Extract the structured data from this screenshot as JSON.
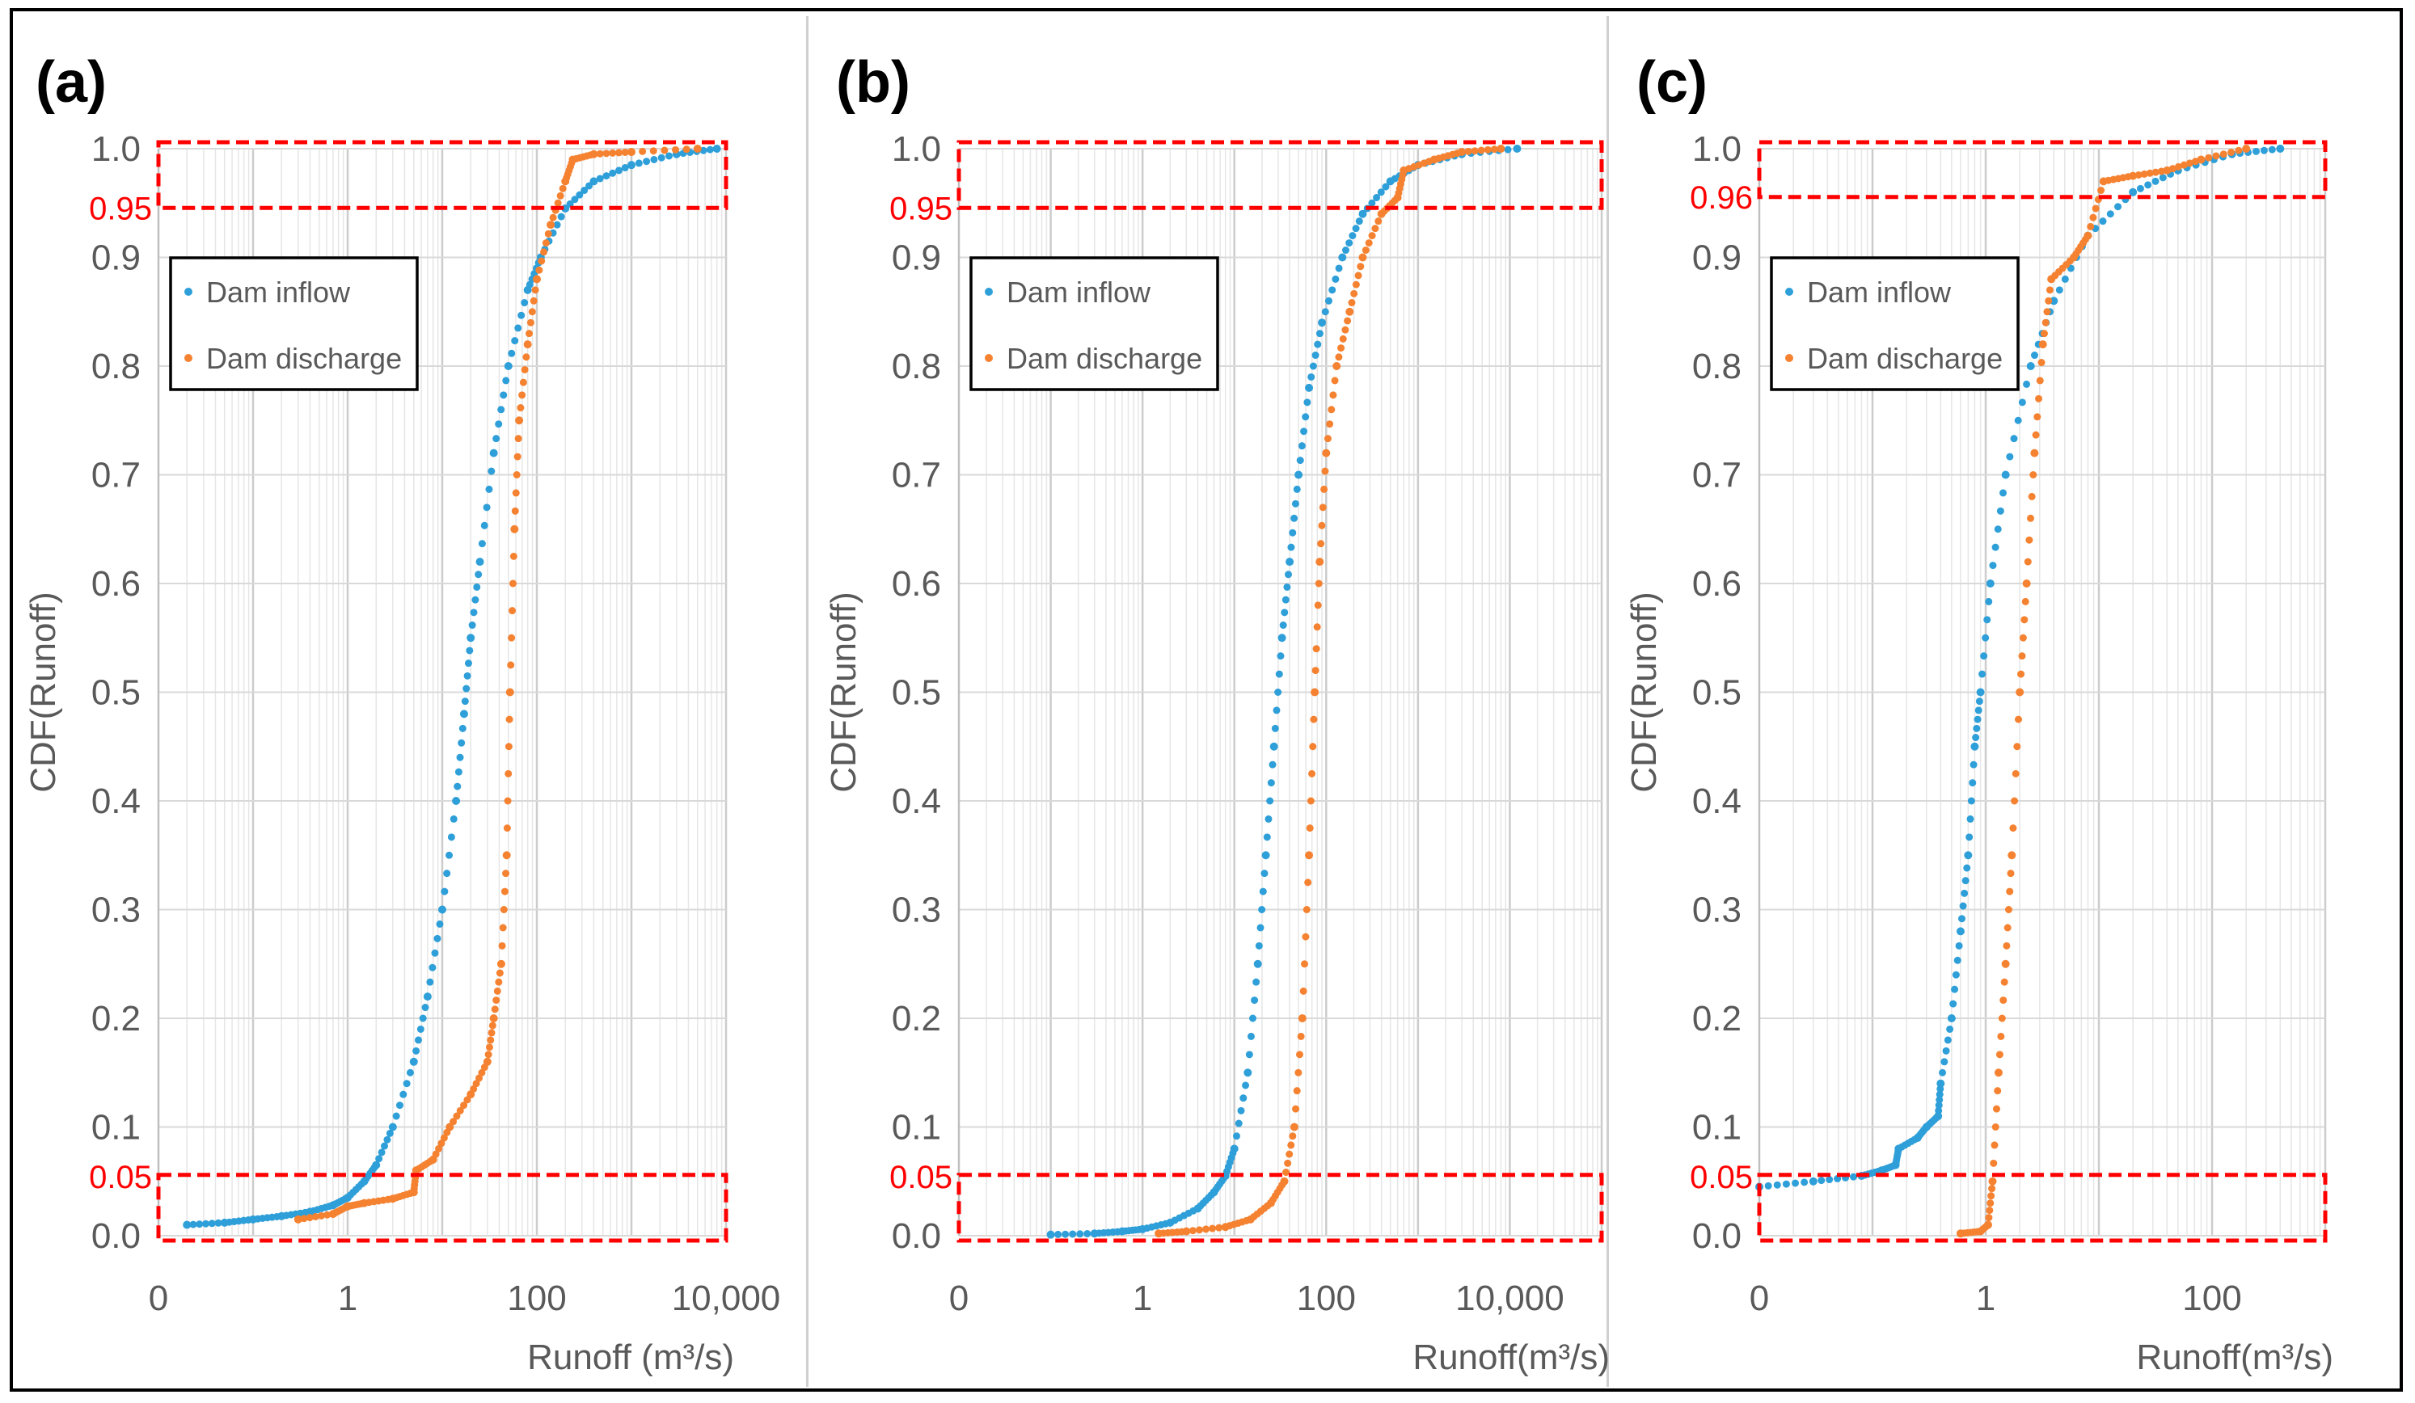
{
  "chart_data": [
    {
      "type": "scatter",
      "panel_label": "(a)",
      "xlabel": "Runoff (m³/s)",
      "ylabel": "CDF(Runoff)",
      "x_scale": "log",
      "xlim": [
        0.01,
        10000
      ],
      "ylim": [
        0.0,
        1.0
      ],
      "x_ticks": [
        {
          "value": 0.01,
          "label": "0"
        },
        {
          "value": 1,
          "label": "1"
        },
        {
          "value": 100,
          "label": "100"
        },
        {
          "value": 10000,
          "label": "10,000"
        }
      ],
      "y_ticks": [
        "0.0",
        "0.1",
        "0.2",
        "0.3",
        "0.4",
        "0.5",
        "0.6",
        "0.7",
        "0.8",
        "0.9",
        "1.0"
      ],
      "grid": true,
      "legend_position": "top-left",
      "series": [
        {
          "name": "Dam inflow",
          "color": "#2e9fd8",
          "points": [
            [
              0.02,
              0.01
            ],
            [
              0.05,
              0.012
            ],
            [
              0.1,
              0.015
            ],
            [
              0.2,
              0.018
            ],
            [
              0.4,
              0.022
            ],
            [
              0.7,
              0.028
            ],
            [
              1,
              0.035
            ],
            [
              1.5,
              0.05
            ],
            [
              2,
              0.065
            ],
            [
              3,
              0.1
            ],
            [
              5,
              0.16
            ],
            [
              7,
              0.22
            ],
            [
              10,
              0.3
            ],
            [
              14,
              0.4
            ],
            [
              17,
              0.48
            ],
            [
              20,
              0.55
            ],
            [
              25,
              0.62
            ],
            [
              35,
              0.72
            ],
            [
              50,
              0.8
            ],
            [
              80,
              0.87
            ],
            [
              110,
              0.9
            ],
            [
              200,
              0.945
            ],
            [
              400,
              0.97
            ],
            [
              1000,
              0.985
            ],
            [
              3000,
              0.995
            ],
            [
              8000,
              1.0
            ]
          ]
        },
        {
          "name": "Dam discharge",
          "color": "#f58231",
          "points": [
            [
              0.3,
              0.015
            ],
            [
              0.7,
              0.02
            ],
            [
              1,
              0.027
            ],
            [
              1.5,
              0.03
            ],
            [
              3,
              0.034
            ],
            [
              5,
              0.04
            ],
            [
              5.3,
              0.06
            ],
            [
              8,
              0.07
            ],
            [
              12,
              0.1
            ],
            [
              20,
              0.13
            ],
            [
              30,
              0.16
            ],
            [
              35,
              0.2
            ],
            [
              42,
              0.25
            ],
            [
              48,
              0.35
            ],
            [
              52,
              0.5
            ],
            [
              58,
              0.65
            ],
            [
              65,
              0.75
            ],
            [
              80,
              0.82
            ],
            [
              100,
              0.88
            ],
            [
              140,
              0.93
            ],
            [
              200,
              0.97
            ],
            [
              240,
              0.99
            ],
            [
              400,
              0.995
            ],
            [
              1000,
              0.997
            ],
            [
              5000,
              1.0
            ]
          ]
        }
      ],
      "annotations": [
        {
          "label": "0.95",
          "y_range": [
            0.95,
            1.0
          ]
        },
        {
          "label": "0.05",
          "y_range": [
            0.0,
            0.05
          ]
        }
      ]
    },
    {
      "type": "scatter",
      "panel_label": "(b)",
      "xlabel": "Runoff(m³/s)",
      "ylabel": "CDF(Runoff)",
      "x_scale": "log",
      "xlim": [
        0.01,
        100000
      ],
      "ylim": [
        0.0,
        1.0
      ],
      "x_ticks": [
        {
          "value": 0.01,
          "label": "0"
        },
        {
          "value": 1,
          "label": "1"
        },
        {
          "value": 100,
          "label": "100"
        },
        {
          "value": 10000,
          "label": "10,000"
        }
      ],
      "y_ticks": [
        "0.0",
        "0.1",
        "0.2",
        "0.3",
        "0.4",
        "0.5",
        "0.6",
        "0.7",
        "0.8",
        "0.9",
        "1.0"
      ],
      "grid": true,
      "legend_position": "top-left",
      "series": [
        {
          "name": "Dam inflow",
          "color": "#2e9fd8",
          "points": [
            [
              0.1,
              0.001
            ],
            [
              0.3,
              0.002
            ],
            [
              0.6,
              0.004
            ],
            [
              1,
              0.006
            ],
            [
              2,
              0.012
            ],
            [
              4,
              0.025
            ],
            [
              6,
              0.04
            ],
            [
              8,
              0.055
            ],
            [
              10,
              0.08
            ],
            [
              14,
              0.15
            ],
            [
              18,
              0.25
            ],
            [
              22,
              0.35
            ],
            [
              27,
              0.45
            ],
            [
              33,
              0.55
            ],
            [
              40,
              0.62
            ],
            [
              50,
              0.7
            ],
            [
              65,
              0.78
            ],
            [
              90,
              0.84
            ],
            [
              150,
              0.9
            ],
            [
              250,
              0.94
            ],
            [
              500,
              0.97
            ],
            [
              1000,
              0.985
            ],
            [
              3000,
              0.995
            ],
            [
              12000,
              1.0
            ]
          ]
        },
        {
          "name": "Dam discharge",
          "color": "#f58231",
          "points": [
            [
              1.5,
              0.002
            ],
            [
              3,
              0.004
            ],
            [
              8,
              0.008
            ],
            [
              15,
              0.015
            ],
            [
              25,
              0.03
            ],
            [
              35,
              0.05
            ],
            [
              45,
              0.1
            ],
            [
              55,
              0.2
            ],
            [
              65,
              0.35
            ],
            [
              75,
              0.5
            ],
            [
              85,
              0.62
            ],
            [
              100,
              0.72
            ],
            [
              130,
              0.8
            ],
            [
              180,
              0.85
            ],
            [
              250,
              0.9
            ],
            [
              400,
              0.94
            ],
            [
              600,
              0.955
            ],
            [
              700,
              0.98
            ],
            [
              1500,
              0.99
            ],
            [
              3000,
              0.997
            ],
            [
              8000,
              1.0
            ]
          ]
        }
      ],
      "annotations": [
        {
          "label": "0.95",
          "y_range": [
            0.95,
            1.0
          ]
        },
        {
          "label": "0.05",
          "y_range": [
            0.0,
            0.05
          ]
        }
      ]
    },
    {
      "type": "scatter",
      "panel_label": "(c)",
      "xlabel": "Runoff(m³/s)",
      "ylabel": "CDF(Runoff)",
      "x_scale": "log",
      "xlim": [
        0.01,
        1000
      ],
      "ylim": [
        0.0,
        1.0
      ],
      "x_ticks": [
        {
          "value": 0.01,
          "label": "0"
        },
        {
          "value": 1,
          "label": "1"
        },
        {
          "value": 100,
          "label": "100"
        }
      ],
      "y_ticks": [
        "0.0",
        "0.1",
        "0.2",
        "0.3",
        "0.4",
        "0.5",
        "0.6",
        "0.7",
        "0.8",
        "0.9",
        "1.0"
      ],
      "grid": true,
      "legend_position": "top-left",
      "series": [
        {
          "name": "Dam inflow",
          "color": "#2e9fd8",
          "points": [
            [
              0.01,
              0.045
            ],
            [
              0.03,
              0.05
            ],
            [
              0.08,
              0.055
            ],
            [
              0.12,
              0.06
            ],
            [
              0.16,
              0.065
            ],
            [
              0.17,
              0.08
            ],
            [
              0.25,
              0.09
            ],
            [
              0.3,
              0.1
            ],
            [
              0.38,
              0.11
            ],
            [
              0.4,
              0.14
            ],
            [
              0.5,
              0.2
            ],
            [
              0.6,
              0.28
            ],
            [
              0.7,
              0.35
            ],
            [
              0.8,
              0.45
            ],
            [
              0.9,
              0.5
            ],
            [
              1.1,
              0.6
            ],
            [
              1.5,
              0.7
            ],
            [
              2.5,
              0.8
            ],
            [
              4,
              0.86
            ],
            [
              8,
              0.92
            ],
            [
              20,
              0.96
            ],
            [
              50,
              0.98
            ],
            [
              150,
              0.995
            ],
            [
              400,
              1.0
            ]
          ]
        },
        {
          "name": "Dam discharge",
          "color": "#f58231",
          "points": [
            [
              0.6,
              0.002
            ],
            [
              0.9,
              0.004
            ],
            [
              1.05,
              0.01
            ],
            [
              1.15,
              0.05
            ],
            [
              1.3,
              0.15
            ],
            [
              1.5,
              0.25
            ],
            [
              1.7,
              0.35
            ],
            [
              2,
              0.5
            ],
            [
              2.3,
              0.6
            ],
            [
              2.7,
              0.72
            ],
            [
              3.2,
              0.82
            ],
            [
              3.8,
              0.88
            ],
            [
              6,
              0.9
            ],
            [
              8,
              0.92
            ],
            [
              11,
              0.97
            ],
            [
              20,
              0.975
            ],
            [
              40,
              0.98
            ],
            [
              80,
              0.99
            ],
            [
              200,
              1.0
            ]
          ]
        }
      ],
      "annotations": [
        {
          "label": "0.96",
          "y_range": [
            0.96,
            1.0
          ]
        },
        {
          "label": "0.05",
          "y_range": [
            0.0,
            0.05
          ]
        }
      ]
    }
  ]
}
